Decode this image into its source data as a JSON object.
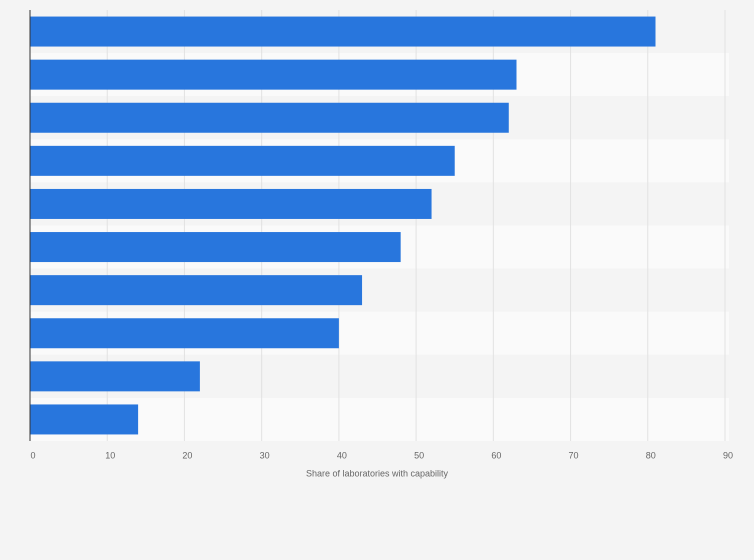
{
  "chart_data": {
    "type": "bar",
    "orientation": "horizontal",
    "x_label": "Share of laboratories with capability",
    "categories": [
      null,
      null,
      null,
      null,
      null,
      null,
      null,
      null,
      null,
      null
    ],
    "values": [
      81,
      63,
      62,
      55,
      52,
      48,
      43,
      40,
      22,
      14
    ],
    "color": "#2876dd",
    "xlim": [
      0,
      90
    ],
    "xticks": [
      0,
      10,
      20,
      30,
      40,
      50,
      60,
      70,
      80,
      90
    ],
    "grid": true
  }
}
